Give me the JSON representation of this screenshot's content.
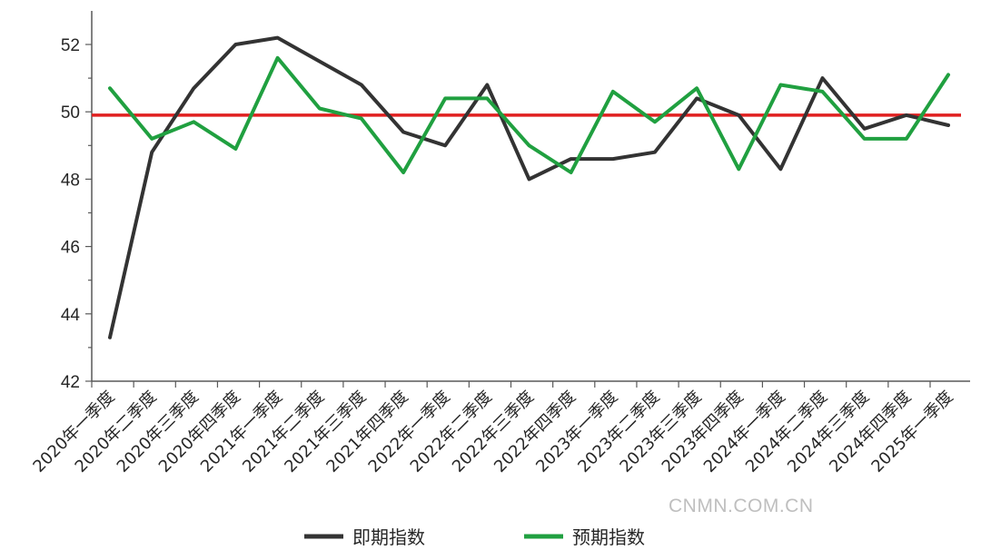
{
  "chart_data": {
    "type": "line",
    "title": "",
    "xlabel": "",
    "ylabel": "",
    "ylim": [
      42,
      53
    ],
    "yticks": [
      42,
      44,
      46,
      48,
      50,
      52
    ],
    "categories": [
      "2020年一季度",
      "2020年二季度",
      "2020年三季度",
      "2020年四季度",
      "2021年一季度",
      "2021年二季度",
      "2021年三季度",
      "2021年四季度",
      "2022年一季度",
      "2022年二季度",
      "2022年三季度",
      "2022年四季度",
      "2023年一季度",
      "2023年二季度",
      "2023年三季度",
      "2023年四季度",
      "2024年一季度",
      "2024年二季度",
      "2024年三季度",
      "2024年四季度",
      "2025年一季度"
    ],
    "series": [
      {
        "name": "即期指数",
        "color": "#333333",
        "values": [
          43.3,
          48.8,
          50.7,
          52.0,
          52.2,
          51.5,
          50.8,
          49.4,
          49.0,
          50.8,
          48.0,
          48.6,
          48.6,
          48.8,
          50.4,
          49.9,
          48.3,
          51.0,
          49.5,
          49.9,
          49.6
        ]
      },
      {
        "name": "预期指数",
        "color": "#20a040",
        "values": [
          50.7,
          49.2,
          49.7,
          48.9,
          51.6,
          50.1,
          49.8,
          48.2,
          50.4,
          50.4,
          49.0,
          48.2,
          50.6,
          49.7,
          50.7,
          48.3,
          50.8,
          50.6,
          49.2,
          49.2,
          51.1
        ]
      }
    ],
    "reference_line": {
      "value": 49.9,
      "color": "#e02020"
    },
    "legend": {
      "placement": "bottom-center"
    },
    "grid": false
  },
  "watermark": "CNMN.COM.CN"
}
